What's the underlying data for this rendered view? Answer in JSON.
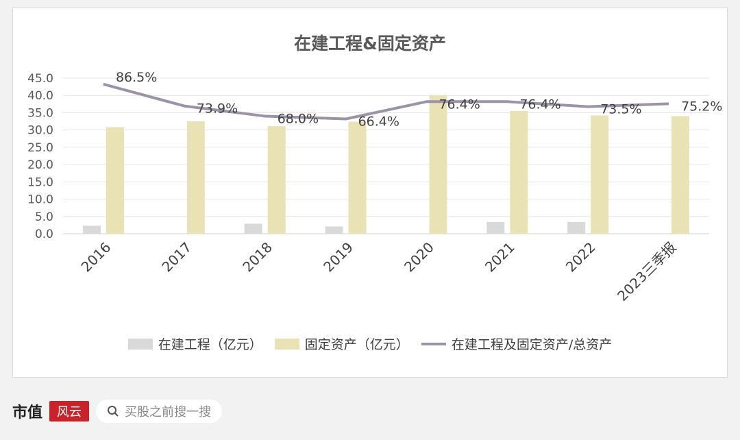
{
  "footer": {
    "brand": "市值",
    "brand_logo_text": "风云",
    "search_text": "买股之前搜一搜"
  },
  "colors": {
    "bar_construction": "#d9d9d9",
    "bar_fixed_assets": "#e8e2b4",
    "line": "#9a94a6",
    "grid": "#e6e6e6"
  },
  "chart_data": {
    "type": "bar",
    "title": "在建工程&固定资产",
    "categories": [
      "2016",
      "2017",
      "2018",
      "2019",
      "2020",
      "2021",
      "2022",
      "2023三季报"
    ],
    "series": [
      {
        "name": "在建工程（亿元）",
        "type": "bar",
        "values": [
          2.3,
          0.0,
          2.9,
          2.1,
          0.0,
          3.4,
          3.4,
          0.0
        ]
      },
      {
        "name": "固定资产（亿元）",
        "type": "bar",
        "values": [
          30.8,
          32.5,
          31.1,
          32.4,
          40.1,
          35.5,
          34.2,
          34.0
        ]
      },
      {
        "name": "在建工程及固定资产/总资产",
        "type": "line",
        "values": [
          86.5,
          73.9,
          68.0,
          66.4,
          76.4,
          76.4,
          73.5,
          75.2
        ],
        "labels": [
          "86.5%",
          "73.9%",
          "68.0%",
          "66.4%",
          "76.4%",
          "76.4%",
          "73.5%",
          "75.2%"
        ]
      }
    ],
    "yticks": [
      "45.0",
      "40.0",
      "35.0",
      "30.0",
      "25.0",
      "20.0",
      "15.0",
      "10.0",
      "5.0",
      "0.0"
    ],
    "ylim": [
      0,
      45
    ],
    "legend_position": "bottom",
    "grid": true
  }
}
